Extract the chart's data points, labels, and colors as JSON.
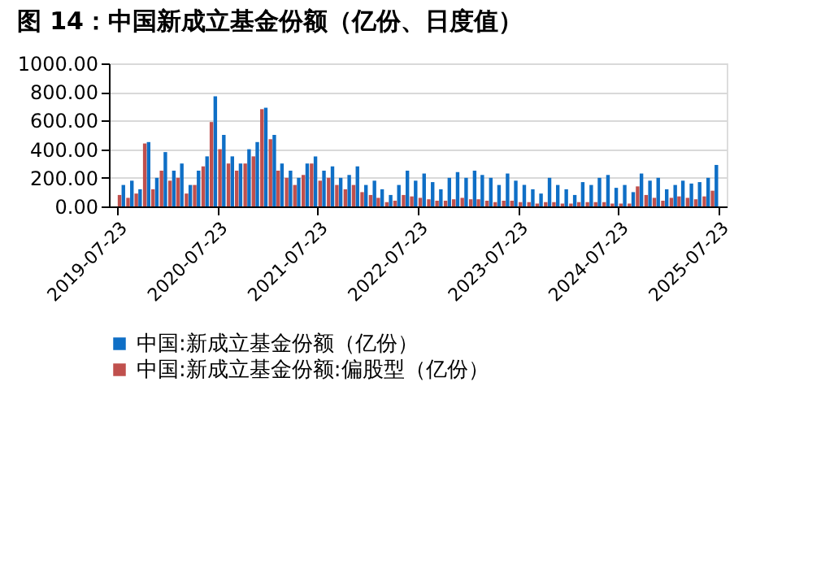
{
  "chart_data": {
    "type": "bar",
    "title": "图 14：中国新成立基金份额（亿份、日度值）",
    "x": [
      "2019-08-15",
      "2019-09-15",
      "2019-10-15",
      "2019-11-15",
      "2019-12-15",
      "2020-01-15",
      "2020-02-15",
      "2020-03-15",
      "2020-04-15",
      "2020-05-15",
      "2020-06-15",
      "2020-07-15",
      "2020-08-15",
      "2020-09-15",
      "2020-10-15",
      "2020-11-15",
      "2020-12-15",
      "2021-01-15",
      "2021-02-15",
      "2021-03-15",
      "2021-04-15",
      "2021-05-15",
      "2021-06-15",
      "2021-07-15",
      "2021-08-15",
      "2021-09-15",
      "2021-10-15",
      "2021-11-15",
      "2021-12-15",
      "2022-01-15",
      "2022-02-15",
      "2022-03-15",
      "2022-04-15",
      "2022-05-15",
      "2022-06-15",
      "2022-07-15",
      "2022-08-15",
      "2022-09-15",
      "2022-10-15",
      "2022-11-15",
      "2022-12-15",
      "2023-01-15",
      "2023-02-15",
      "2023-03-15",
      "2023-04-15",
      "2023-05-15",
      "2023-06-15",
      "2023-07-15",
      "2023-08-15",
      "2023-09-15",
      "2023-10-15",
      "2023-11-15",
      "2023-12-15",
      "2024-01-15",
      "2024-02-15",
      "2024-03-15",
      "2024-04-15",
      "2024-05-15",
      "2024-06-15",
      "2024-07-15",
      "2024-08-15",
      "2024-09-15",
      "2024-10-15",
      "2024-11-15",
      "2024-12-15",
      "2025-01-15",
      "2025-02-15",
      "2025-03-15",
      "2025-04-15",
      "2025-05-15",
      "2025-06-15",
      "2025-07-15"
    ],
    "series": [
      {
        "name": "中国:新成立基金份额（亿份）",
        "color": "#0f6fc6",
        "values": [
          150,
          180,
          120,
          450,
          200,
          380,
          250,
          300,
          150,
          250,
          350,
          770,
          500,
          350,
          300,
          400,
          450,
          690,
          500,
          300,
          250,
          200,
          300,
          350,
          250,
          280,
          200,
          220,
          280,
          150,
          180,
          120,
          80,
          150,
          250,
          180,
          230,
          170,
          120,
          200,
          240,
          200,
          250,
          220,
          200,
          150,
          230,
          180,
          150,
          120,
          90,
          200,
          150,
          120,
          80,
          170,
          150,
          200,
          220,
          130,
          150,
          100,
          230,
          180,
          200,
          120,
          150,
          180,
          160,
          170,
          200,
          290
        ]
      },
      {
        "name": "中国:新成立基金份额:偏股型（亿份）",
        "color": "#c0504d",
        "x": [
          "2019-08-01",
          "2019-09-01",
          "2019-10-01",
          "2019-11-01",
          "2019-12-01",
          "2020-01-01",
          "2020-02-01",
          "2020-03-01",
          "2020-04-01",
          "2020-05-01",
          "2020-06-01",
          "2020-07-01",
          "2020-08-01",
          "2020-09-01",
          "2020-10-01",
          "2020-11-01",
          "2020-12-01",
          "2021-01-01",
          "2021-02-01",
          "2021-03-01",
          "2021-04-01",
          "2021-05-01",
          "2021-06-01",
          "2021-07-01",
          "2021-08-01",
          "2021-09-01",
          "2021-10-01",
          "2021-11-01",
          "2021-12-01",
          "2022-01-01",
          "2022-02-01",
          "2022-03-01",
          "2022-04-01",
          "2022-05-01",
          "2022-06-01",
          "2022-07-01",
          "2022-08-01",
          "2022-09-01",
          "2022-10-01",
          "2022-11-01",
          "2022-12-01",
          "2023-01-01",
          "2023-02-01",
          "2023-03-01",
          "2023-04-01",
          "2023-05-01",
          "2023-06-01",
          "2023-07-01",
          "2023-08-01",
          "2023-09-01",
          "2023-10-01",
          "2023-11-01",
          "2023-12-01",
          "2024-01-01",
          "2024-02-01",
          "2024-03-01",
          "2024-04-01",
          "2024-05-01",
          "2024-06-01",
          "2024-07-01",
          "2024-08-01",
          "2024-09-01",
          "2024-10-01",
          "2024-11-01",
          "2024-12-01",
          "2025-01-01",
          "2025-02-01",
          "2025-03-01",
          "2025-04-01",
          "2025-05-01",
          "2025-06-01",
          "2025-07-01"
        ],
        "values": [
          80,
          60,
          90,
          440,
          120,
          250,
          180,
          200,
          90,
          150,
          280,
          590,
          400,
          300,
          250,
          300,
          350,
          680,
          470,
          250,
          200,
          150,
          220,
          300,
          180,
          200,
          150,
          120,
          150,
          100,
          80,
          60,
          30,
          40,
          80,
          70,
          60,
          50,
          40,
          40,
          50,
          60,
          50,
          50,
          40,
          30,
          40,
          40,
          30,
          30,
          20,
          30,
          30,
          20,
          20,
          30,
          30,
          30,
          30,
          20,
          20,
          20,
          140,
          80,
          60,
          40,
          60,
          70,
          60,
          50,
          70,
          110
        ]
      }
    ],
    "xlim": [
      "2019-07-23",
      "2025-07-23"
    ],
    "xticks": [
      {
        "value": "2019-07-23",
        "label": "2019-07-23"
      },
      {
        "value": "2020-07-23",
        "label": "2020-07-23"
      },
      {
        "value": "2021-07-23",
        "label": "2021-07-23"
      },
      {
        "value": "2022-07-23",
        "label": "2022-07-23"
      },
      {
        "value": "2023-07-23",
        "label": "2023-07-23"
      },
      {
        "value": "2024-07-23",
        "label": "2024-07-23"
      },
      {
        "value": "2025-07-23",
        "label": "2025-07-23"
      }
    ],
    "ylim": [
      0,
      1000
    ],
    "yticks": [
      {
        "value": 0,
        "label": "0.00"
      },
      {
        "value": 200,
        "label": "200.00"
      },
      {
        "value": 400,
        "label": "400.00"
      },
      {
        "value": 600,
        "label": "600.00"
      },
      {
        "value": 800,
        "label": "800.00"
      },
      {
        "value": 1000,
        "label": "1000.00"
      }
    ],
    "grid": "y",
    "legend": "bottom"
  }
}
